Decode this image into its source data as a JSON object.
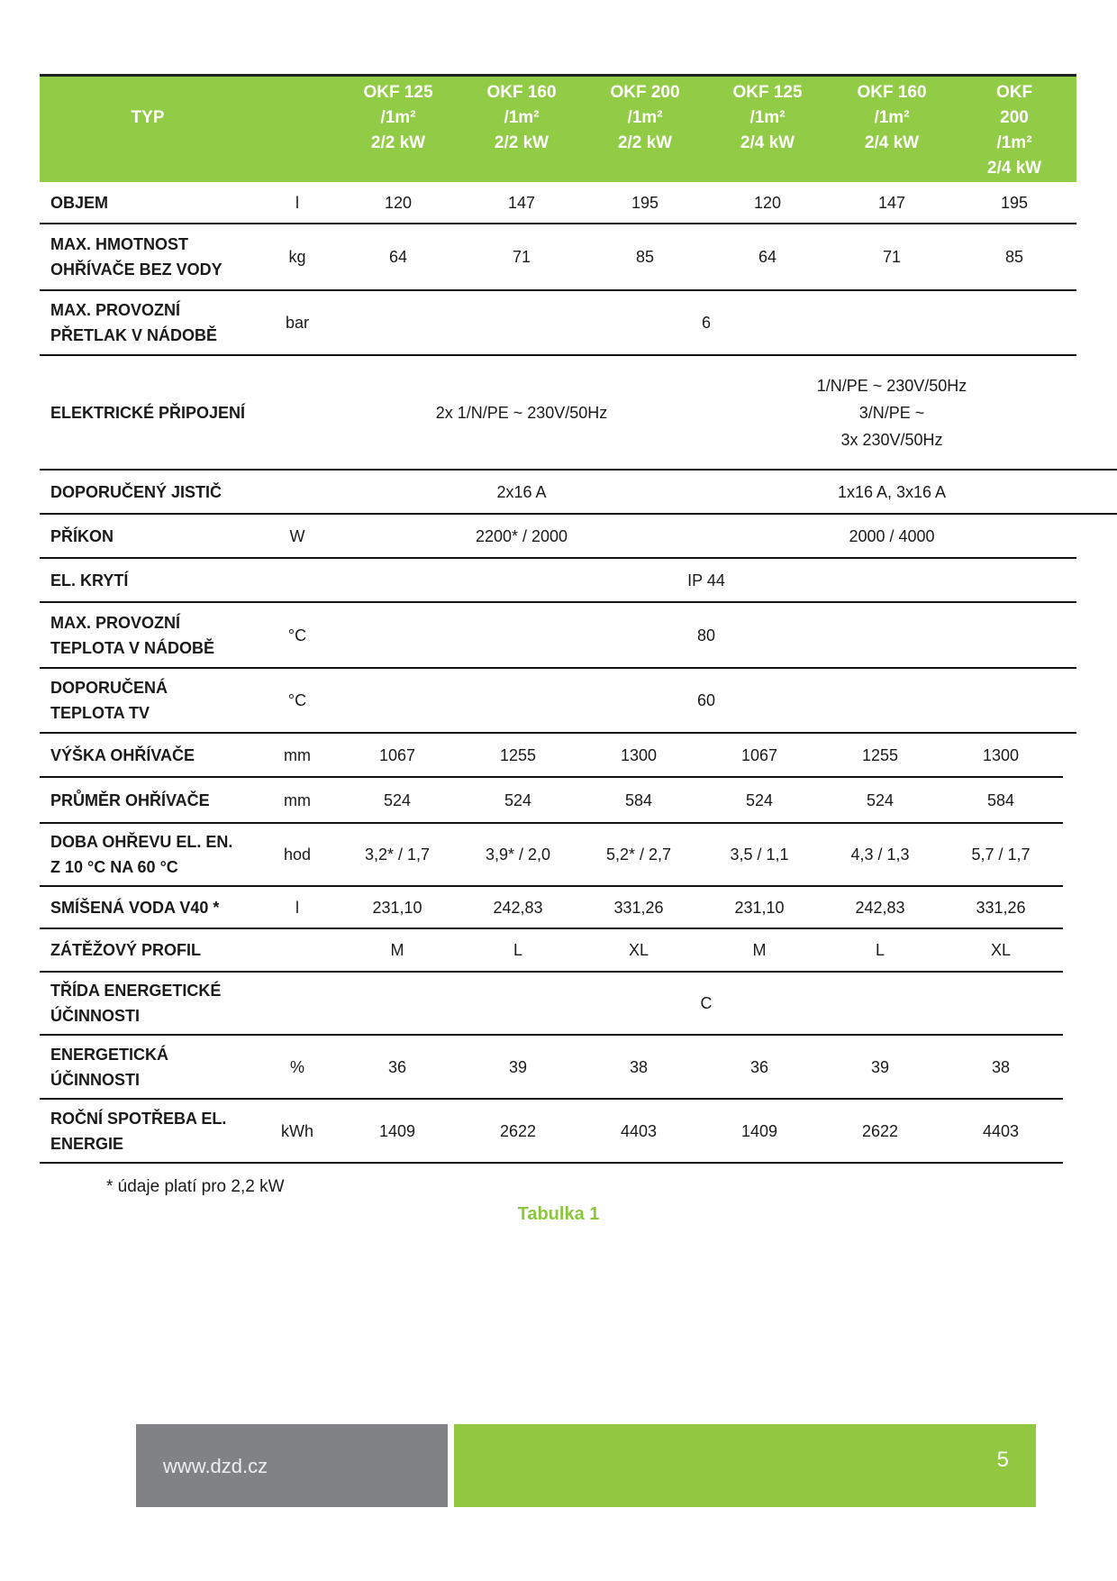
{
  "header": {
    "typ": "TYP",
    "columns": [
      "OKF 125\n/1m²\n2/2 kW",
      "OKF 160\n/1m²\n2/2 kW",
      "OKF 200\n/1m²\n2/2 kW",
      "OKF 125\n/1m²\n2/4 kW",
      "OKF 160\n/1m²\n2/4 kW",
      "OKF 200\n/1m²\n2/4 kW"
    ]
  },
  "rows": [
    {
      "label": "OBJEM",
      "unit": "l",
      "values": [
        "120",
        "147",
        "195",
        "120",
        "147",
        "195"
      ]
    },
    {
      "label": "MAX. HMOTNOST\nOHŘÍVAČE BEZ VODY",
      "unit": "kg",
      "values": [
        "64",
        "71",
        "85",
        "64",
        "71",
        "85"
      ]
    },
    {
      "label": "MAX. PROVOZNÍ\nPŘETLAK V NÁDOBĚ",
      "unit": "bar",
      "values": [
        "6"
      ]
    },
    {
      "label": "ELEKTRICKÉ PŘIPOJENÍ",
      "unit": "",
      "values": [
        "2x 1/N/PE ~ 230V/50Hz",
        "1/N/PE ~ 230V/50Hz\n3/N/PE ~\n3x 230V/50Hz"
      ]
    },
    {
      "label": "DOPORUČENÝ JISTIČ",
      "unit": "",
      "values": [
        "2x16 A",
        "1x16 A, 3x16 A"
      ]
    },
    {
      "label": "PŘÍKON",
      "unit": "W",
      "values": [
        "2200* / 2000",
        "2000 / 4000"
      ]
    },
    {
      "label": "EL. KRYTÍ",
      "unit": "",
      "values": [
        "IP 44"
      ]
    },
    {
      "label": "MAX. PROVOZNÍ\nTEPLOTA V NÁDOBĚ",
      "unit": "°C",
      "values": [
        "80"
      ]
    },
    {
      "label": "DOPORUČENÁ\nTEPLOTA TV",
      "unit": "°C",
      "values": [
        "60"
      ]
    },
    {
      "label": "VÝŠKA OHŘÍVAČE",
      "unit": "mm",
      "values": [
        "1067",
        "1255",
        "1300",
        "1067",
        "1255",
        "1300"
      ]
    },
    {
      "label": "PRŮMĚR OHŘÍVAČE",
      "unit": "mm",
      "values": [
        "524",
        "524",
        "584",
        "524",
        "524",
        "584"
      ]
    },
    {
      "label": "DOBA OHŘEVU EL. EN.\nZ 10 °C NA 60 °C",
      "unit": "hod",
      "values": [
        "3,2* / 1,7",
        "3,9* / 2,0",
        "5,2* / 2,7",
        "3,5 / 1,1",
        "4,3 / 1,3",
        "5,7 / 1,7"
      ]
    },
    {
      "label": "SMÍŠENÁ VODA V40 *",
      "unit": "l",
      "values": [
        "231,10",
        "242,83",
        "331,26",
        "231,10",
        "242,83",
        "331,26"
      ]
    },
    {
      "label": "ZÁTĚŽOVÝ PROFIL",
      "unit": "",
      "values": [
        "M",
        "L",
        "XL",
        "M",
        "L",
        "XL"
      ]
    },
    {
      "label": "TŘÍDA ENERGETICKÉ\nÚČINNOSTI",
      "unit": "",
      "values": [
        "C"
      ]
    },
    {
      "label": "ENERGETICKÁ\nÚČINNOSTI",
      "unit": "%",
      "values": [
        "36",
        "39",
        "38",
        "36",
        "39",
        "38"
      ]
    },
    {
      "label": "ROČNÍ SPOTŘEBA EL.\nENERGIE",
      "unit": "kWh",
      "values": [
        "1409",
        "2622",
        "4403",
        "1409",
        "2622",
        "4403"
      ]
    }
  ],
  "footnote": "* údaje platí pro 2,2 kW",
  "caption": "Tabulka 1",
  "footer": {
    "url": "www.dzd.cz",
    "page": "5"
  },
  "colors": {
    "accent": "#92cb45",
    "footer_gray": "#808285"
  }
}
